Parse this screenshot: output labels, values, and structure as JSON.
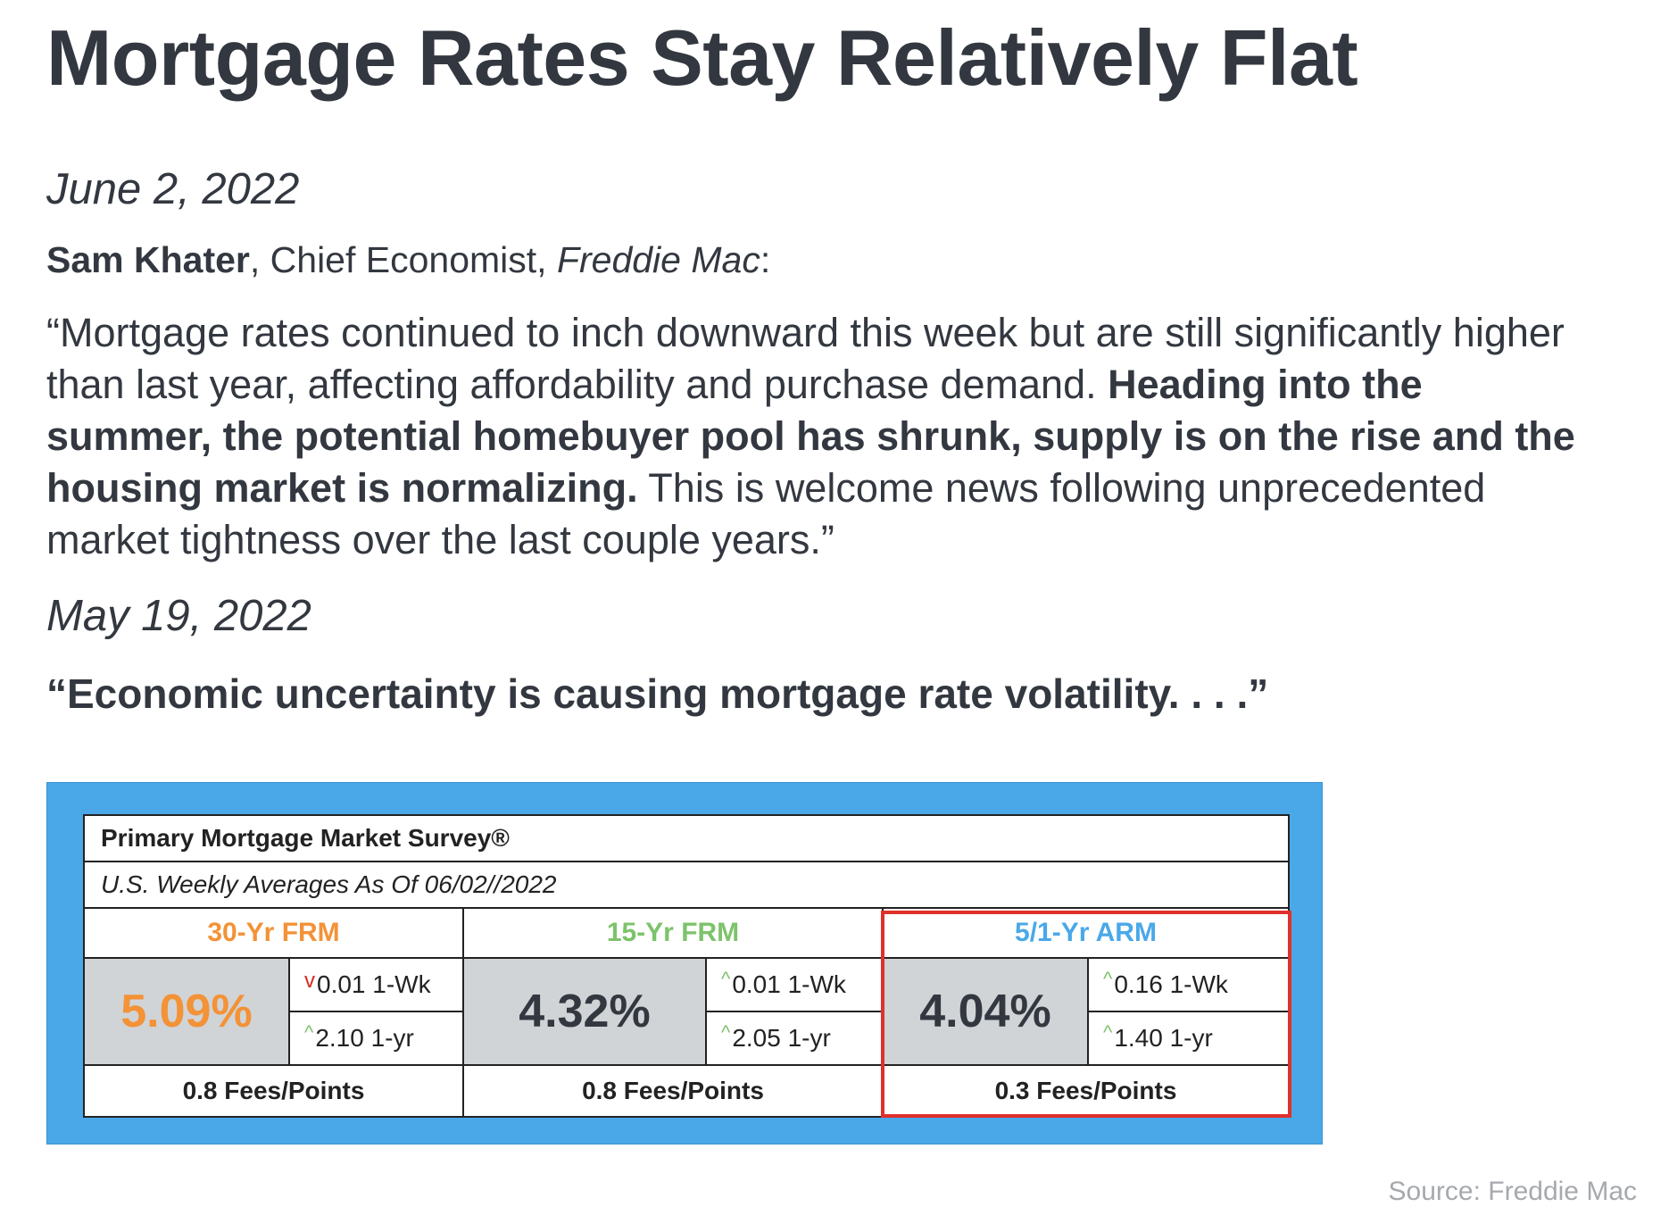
{
  "title": "Mortgage Rates Stay Relatively Flat",
  "entry1": {
    "date": "June 2, 2022",
    "author": "Sam Khater",
    "role": ", Chief Economist, ",
    "org": "Freddie Mac",
    "colon": ":",
    "quote_part1": "“Mortgage rates continued to inch downward this week but are still significantly higher than last year, affecting affordability and purchase demand. ",
    "quote_bold": "Heading into the summer, the potential homebuyer pool has shrunk, supply is on the rise and the housing market is normalizing.",
    "quote_part2": " This is welcome news following unprecedented market tightness over the last couple years.”"
  },
  "entry2": {
    "date": "May 19, 2022",
    "quote": "“Economic uncertainty is causing mortgage rate volatility. . . .”"
  },
  "survey": {
    "title": "Primary Mortgage Market Survey®",
    "subtitle": "U.S. Weekly Averages As Of 06/02//2022",
    "columns": [
      {
        "label": "30-Yr FRM",
        "color": "#f39237",
        "rate": "5.09%",
        "wk_dir": "down",
        "wk_arrow": "v",
        "wk_change": "0.01 1-Wk",
        "yr_arrow": "^",
        "yr_change": "2.10 1-yr",
        "fees": "0.8 Fees/Points"
      },
      {
        "label": "15-Yr FRM",
        "color": "#7cc36b",
        "rate": "4.32%",
        "wk_dir": "up",
        "wk_arrow": "^",
        "wk_change": "0.01 1-Wk",
        "yr_arrow": "^",
        "yr_change": "2.05 1-yr",
        "fees": "0.8 Fees/Points"
      },
      {
        "label": "5/1-Yr ARM",
        "color": "#4aa8e8",
        "rate": "4.04%",
        "wk_dir": "up",
        "wk_arrow": "^",
        "wk_change": "0.16 1-Wk",
        "yr_arrow": "^",
        "yr_change": "1.40 1-yr",
        "fees": "0.3 Fees/Points"
      }
    ],
    "frame_color": "#4aa8e8",
    "highlight_color": "#e0302a"
  },
  "source": "Source: Freddie Mac"
}
